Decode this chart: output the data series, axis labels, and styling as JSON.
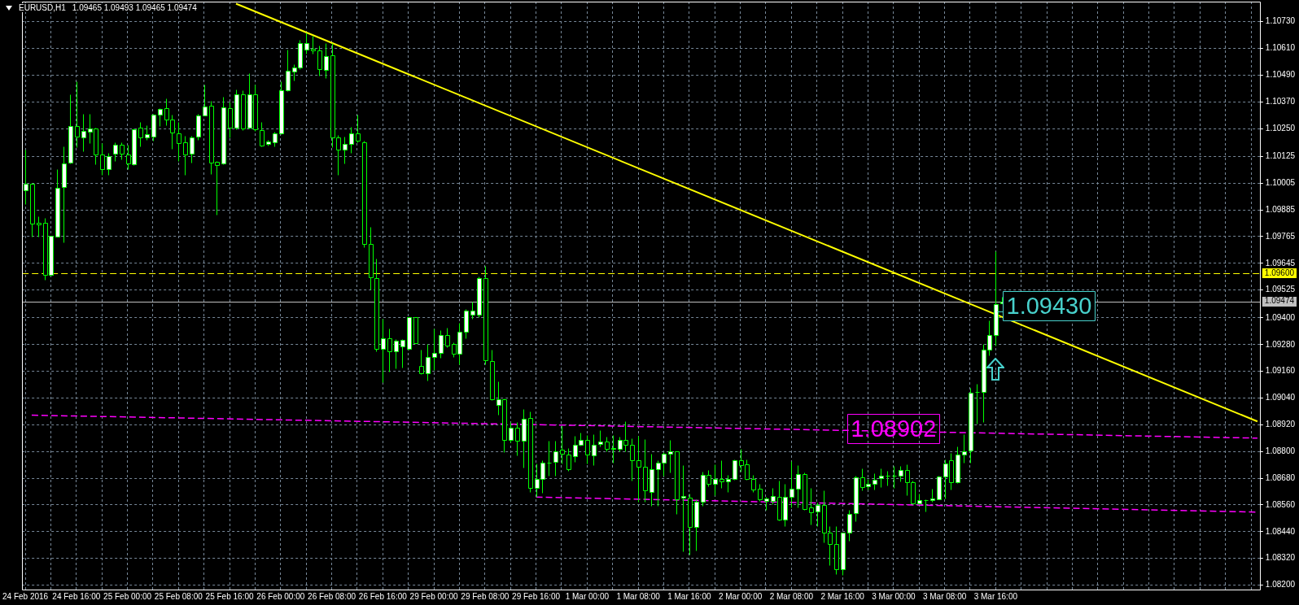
{
  "chart_data": {
    "type": "candlestick",
    "title": "EURUSD,H1",
    "subtitle": "1.09465 1.09493 1.09465 1.09474",
    "categories": [
      "24 Feb 2016",
      null,
      null,
      null,
      null,
      null,
      null,
      null,
      "24 Feb 16:00",
      null,
      null,
      null,
      null,
      null,
      null,
      null,
      "25 Feb 00:00",
      null,
      null,
      null,
      null,
      null,
      null,
      null,
      "25 Feb 08:00",
      null,
      null,
      null,
      null,
      null,
      null,
      null,
      "25 Feb 16:00",
      null,
      null,
      null,
      null,
      null,
      null,
      null,
      "26 Feb 00:00",
      null,
      null,
      null,
      null,
      null,
      null,
      null,
      "26 Feb 08:00",
      null,
      null,
      null,
      null,
      null,
      null,
      null,
      "26 Feb 16:00",
      null,
      null,
      null,
      null,
      null,
      null,
      null,
      "29 Feb 00:00",
      null,
      null,
      null,
      null,
      null,
      null,
      null,
      "29 Feb 08:00",
      null,
      null,
      null,
      null,
      null,
      null,
      null,
      "29 Feb 16:00",
      null,
      null,
      null,
      null,
      null,
      null,
      null,
      "1 Mar 00:00",
      null,
      null,
      null,
      null,
      null,
      null,
      null,
      "1 Mar 08:00",
      null,
      null,
      null,
      null,
      null,
      null,
      null,
      "1 Mar 16:00",
      null,
      null,
      null,
      null,
      null,
      null,
      null,
      "2 Mar 00:00",
      null,
      null,
      null,
      null,
      null,
      null,
      null,
      "2 Mar 08:00",
      null,
      null,
      null,
      null,
      null,
      null,
      null,
      "2 Mar 16:00",
      null,
      null,
      null,
      null,
      null,
      null,
      null,
      "3 Mar 00:00",
      null,
      null,
      null,
      null,
      null,
      null,
      null,
      "3 Mar 08:00",
      null,
      null,
      null,
      null,
      null,
      null,
      null,
      "3 Mar 16:00",
      null,
      null,
      null,
      null,
      null,
      null,
      null,
      null,
      null,
      null,
      null,
      null,
      null,
      null,
      null,
      null,
      null,
      null,
      null,
      null,
      null,
      null,
      null,
      null,
      null,
      null,
      null,
      null,
      null,
      null,
      null,
      null,
      null,
      null,
      null,
      null,
      null,
      null,
      null,
      null,
      null
    ],
    "ohlc": [
      [
        1.09973,
        1.10156,
        1.09911,
        1.10002
      ],
      [
        1.10002,
        1.10005,
        1.09763,
        1.09822
      ],
      [
        1.09826,
        1.09857,
        1.09766,
        1.09818
      ],
      [
        1.09825,
        1.09848,
        1.0957,
        1.09593
      ],
      [
        1.09593,
        1.0977,
        1.0959,
        1.09768
      ],
      [
        1.09766,
        1.10069,
        1.09763,
        1.09985
      ],
      [
        1.09989,
        1.1017,
        1.09738,
        1.10093
      ],
      [
        1.10096,
        1.10404,
        1.10093,
        1.10263
      ],
      [
        1.10263,
        1.10462,
        1.10166,
        1.10213
      ],
      [
        1.10209,
        1.10317,
        1.10149,
        1.1024
      ],
      [
        1.10236,
        1.10315,
        1.10186,
        1.10249
      ],
      [
        1.10249,
        1.10254,
        1.10089,
        1.10132
      ],
      [
        1.10135,
        1.10186,
        1.10044,
        1.10066
      ],
      [
        1.10066,
        1.1014,
        1.10044,
        1.10128
      ],
      [
        1.10136,
        1.10187,
        1.10106,
        1.10179
      ],
      [
        1.10179,
        1.10187,
        1.10111,
        1.10139
      ],
      [
        1.10135,
        1.10178,
        1.10066,
        1.10093
      ],
      [
        1.10089,
        1.10249,
        1.10086,
        1.10246
      ],
      [
        1.10254,
        1.1028,
        1.1017,
        1.10211
      ],
      [
        1.10211,
        1.10266,
        1.10199,
        1.10225
      ],
      [
        1.10213,
        1.10315,
        1.10195,
        1.10312
      ],
      [
        1.10312,
        1.10342,
        1.10262,
        1.10338
      ],
      [
        1.1034,
        1.10384,
        1.10265,
        1.1029
      ],
      [
        1.1029,
        1.10312,
        1.10158,
        1.10231
      ],
      [
        1.1023,
        1.10278,
        1.10106,
        1.10186
      ],
      [
        1.1019,
        1.10219,
        1.10044,
        1.10135
      ],
      [
        1.10139,
        1.10219,
        1.10098,
        1.10211
      ],
      [
        1.10213,
        1.10317,
        1.10199,
        1.1031
      ],
      [
        1.1031,
        1.10446,
        1.1031,
        1.10348
      ],
      [
        1.10352,
        1.10374,
        1.10047,
        1.10097
      ],
      [
        1.10099,
        1.10106,
        1.09865,
        1.10086
      ],
      [
        1.10093,
        1.10394,
        1.10089,
        1.10345
      ],
      [
        1.10342,
        1.1037,
        1.10211,
        1.10253
      ],
      [
        1.10253,
        1.10424,
        1.10248,
        1.10404
      ],
      [
        1.10404,
        1.10421,
        1.10244,
        1.10249
      ],
      [
        1.10253,
        1.10499,
        1.10249,
        1.10404
      ],
      [
        1.10404,
        1.10446,
        1.10241,
        1.10245
      ],
      [
        1.10243,
        1.1028,
        1.1017,
        1.10173
      ],
      [
        1.1018,
        1.10199,
        1.10173,
        1.10192
      ],
      [
        1.1019,
        1.10236,
        1.1017,
        1.10228
      ],
      [
        1.10229,
        1.10462,
        1.10226,
        1.10421
      ],
      [
        1.10421,
        1.10605,
        1.10418,
        1.10508
      ],
      [
        1.10505,
        1.10538,
        1.10467,
        1.10526
      ],
      [
        1.10524,
        1.10647,
        1.10516,
        1.10635
      ],
      [
        1.10605,
        1.1068,
        1.10588,
        1.10635
      ],
      [
        1.10608,
        1.10666,
        1.10588,
        1.106
      ],
      [
        1.106,
        1.10622,
        1.10488,
        1.10516
      ],
      [
        1.10513,
        1.10635,
        1.10476,
        1.10576
      ],
      [
        1.1058,
        1.10635,
        1.10167,
        1.10212
      ],
      [
        1.10209,
        1.1022,
        1.10044,
        1.10155
      ],
      [
        1.10155,
        1.10215,
        1.10095,
        1.1018
      ],
      [
        1.10182,
        1.10257,
        1.1014,
        1.10229
      ],
      [
        1.10229,
        1.10312,
        1.1019,
        1.10194
      ],
      [
        1.1019,
        1.10194,
        1.09716,
        1.09732
      ],
      [
        1.09732,
        1.09807,
        1.09527,
        1.09582
      ],
      [
        1.09577,
        1.09666,
        1.09251,
        1.0926
      ],
      [
        1.0926,
        1.09396,
        1.0911,
        1.09308
      ],
      [
        1.0931,
        1.09352,
        1.09159,
        1.09251
      ],
      [
        1.09251,
        1.09306,
        1.09173,
        1.09298
      ],
      [
        1.09272,
        1.09306,
        1.09177,
        1.09302
      ],
      [
        1.0926,
        1.09405,
        1.09257,
        1.09402
      ],
      [
        1.09402,
        1.09405,
        1.09285,
        1.09288
      ],
      [
        1.09184,
        1.09256,
        1.09146,
        1.09151
      ],
      [
        1.09151,
        1.09282,
        1.09118,
        1.09223
      ],
      [
        1.09223,
        1.09352,
        1.09166,
        1.09243
      ],
      [
        1.09243,
        1.09343,
        1.09222,
        1.09322
      ],
      [
        1.09322,
        1.09355,
        1.09268,
        1.09276
      ],
      [
        1.09282,
        1.0929,
        1.09226,
        1.09238
      ],
      [
        1.09238,
        1.09377,
        1.09193,
        1.09338
      ],
      [
        1.09338,
        1.09441,
        1.0931,
        1.09434
      ],
      [
        1.09415,
        1.09472,
        1.09396,
        1.09434
      ],
      [
        1.09415,
        1.09585,
        1.09405,
        1.09577
      ],
      [
        1.09577,
        1.09633,
        1.09193,
        1.0921
      ],
      [
        1.09206,
        1.09256,
        1.09031,
        1.09034
      ],
      [
        1.09009,
        1.09114,
        1.08964,
        1.09034
      ],
      [
        1.09034,
        1.09037,
        1.08796,
        1.08853
      ],
      [
        1.08853,
        1.08932,
        1.08841,
        1.08905
      ],
      [
        1.08905,
        1.08932,
        1.08783,
        1.0885
      ],
      [
        1.0885,
        1.0899,
        1.08728,
        1.08948
      ],
      [
        1.08952,
        1.08978,
        1.08618,
        1.08635
      ],
      [
        1.08635,
        1.08746,
        1.08597,
        1.08675
      ],
      [
        1.08675,
        1.0876,
        1.08614,
        1.08748
      ],
      [
        1.08748,
        1.08847,
        1.08692,
        1.0875
      ],
      [
        1.08752,
        1.08847,
        1.08692,
        1.08801
      ],
      [
        1.08807,
        1.08917,
        1.08747,
        1.0879
      ],
      [
        1.08787,
        1.08817,
        1.08712,
        1.08721
      ],
      [
        1.08779,
        1.0887,
        1.08753,
        1.08831
      ],
      [
        1.08831,
        1.08885,
        1.08827,
        1.08853
      ],
      [
        1.08853,
        1.08874,
        1.08745,
        1.08787
      ],
      [
        1.08784,
        1.08877,
        1.0874,
        1.08831
      ],
      [
        1.08835,
        1.08895,
        1.08823,
        1.08845
      ],
      [
        1.08846,
        1.08865,
        1.08802,
        1.08812
      ],
      [
        1.08814,
        1.08874,
        1.08749,
        1.08812
      ],
      [
        1.0881,
        1.08868,
        1.08801,
        1.08853
      ],
      [
        1.08853,
        1.08935,
        1.08801,
        1.0883
      ],
      [
        1.08831,
        1.08858,
        1.08669,
        1.08761
      ],
      [
        1.08759,
        1.08871,
        1.08573,
        1.0873
      ],
      [
        1.0873,
        1.08855,
        1.08573,
        1.08625
      ],
      [
        1.0862,
        1.0879,
        1.08557,
        1.08722
      ],
      [
        1.08722,
        1.0876,
        1.08557,
        1.08751
      ],
      [
        1.08751,
        1.08797,
        1.08692,
        1.08788
      ],
      [
        1.08788,
        1.08851,
        1.08706,
        1.08801
      ],
      [
        1.08799,
        1.08801,
        1.08521,
        1.08585
      ],
      [
        1.08591,
        1.0874,
        1.08351,
        1.086
      ],
      [
        1.08594,
        1.08611,
        1.08338,
        1.08462
      ],
      [
        1.08462,
        1.08585,
        1.08356,
        1.08576
      ],
      [
        1.08573,
        1.08711,
        1.08555,
        1.08696
      ],
      [
        1.08696,
        1.08718,
        1.08643,
        1.08655
      ],
      [
        1.08655,
        1.08742,
        1.08603,
        1.08678
      ],
      [
        1.08678,
        1.0876,
        1.08637,
        1.08667
      ],
      [
        1.08667,
        1.08694,
        1.08617,
        1.08675
      ],
      [
        1.08676,
        1.08765,
        1.08672,
        1.08759
      ],
      [
        1.08759,
        1.08812,
        1.08711,
        1.0874
      ],
      [
        1.08741,
        1.08765,
        1.08672,
        1.08678
      ],
      [
        1.08678,
        1.08694,
        1.08617,
        1.0863
      ],
      [
        1.08631,
        1.08654,
        1.08579,
        1.08586
      ],
      [
        1.08579,
        1.08598,
        1.08537,
        1.08589
      ],
      [
        1.08577,
        1.08638,
        1.08562,
        1.08601
      ],
      [
        1.08598,
        1.08668,
        1.08489,
        1.08495
      ],
      [
        1.08495,
        1.08653,
        1.08465,
        1.08598
      ],
      [
        1.08598,
        1.08757,
        1.0855,
        1.08632
      ],
      [
        1.08632,
        1.08738,
        1.0855,
        1.08699
      ],
      [
        1.08699,
        1.08704,
        1.08538,
        1.08541
      ],
      [
        1.0855,
        1.08636,
        1.08471,
        1.08526
      ],
      [
        1.0853,
        1.08569,
        1.08465,
        1.08561
      ],
      [
        1.08561,
        1.08624,
        1.08392,
        1.08435
      ],
      [
        1.08435,
        1.08465,
        1.08289,
        1.08383
      ],
      [
        1.08383,
        1.08465,
        1.08251,
        1.08273
      ],
      [
        1.08273,
        1.08437,
        1.08245,
        1.08435
      ],
      [
        1.08437,
        1.08538,
        1.08398,
        1.0852
      ],
      [
        1.08522,
        1.08692,
        1.08487,
        1.08683
      ],
      [
        1.08683,
        1.08725,
        1.08625,
        1.0864
      ],
      [
        1.08643,
        1.08677,
        1.08628,
        1.08655
      ],
      [
        1.08656,
        1.08701,
        1.08628,
        1.08674
      ],
      [
        1.0868,
        1.08725,
        1.0864,
        1.08692
      ],
      [
        1.08692,
        1.08713,
        1.08646,
        1.08692
      ],
      [
        1.08693,
        1.08735,
        1.08636,
        1.08693
      ],
      [
        1.08693,
        1.08734,
        1.08665,
        1.08717
      ],
      [
        1.08716,
        1.08741,
        1.08604,
        1.08663
      ],
      [
        1.08663,
        1.08668,
        1.08562,
        1.08566
      ],
      [
        1.08568,
        1.0861,
        1.08562,
        1.08583
      ],
      [
        1.08581,
        1.08584,
        1.0853,
        1.08581
      ],
      [
        1.08581,
        1.08633,
        1.08574,
        1.08588
      ],
      [
        1.08587,
        1.0869,
        1.08584,
        1.08688
      ],
      [
        1.08688,
        1.08763,
        1.08589,
        1.08747
      ],
      [
        1.08759,
        1.08793,
        1.08628,
        1.08663
      ],
      [
        1.08663,
        1.08821,
        1.0866,
        1.08787
      ],
      [
        1.08787,
        1.08876,
        1.08751,
        1.08802
      ],
      [
        1.08805,
        1.09086,
        1.08751,
        1.09065
      ],
      [
        1.09068,
        1.09105,
        1.08925,
        1.09068
      ],
      [
        1.09069,
        1.09281,
        1.08933,
        1.09259
      ],
      [
        1.09257,
        1.09388,
        1.09233,
        1.09324
      ],
      [
        1.09324,
        1.097,
        1.09275,
        1.09462
      ],
      [
        1.09465,
        1.09493,
        1.09465,
        1.09474
      ],
      null,
      null,
      null,
      null,
      null,
      null,
      null,
      null,
      null,
      null,
      null,
      null,
      null,
      null,
      null,
      null,
      null,
      null,
      null,
      null,
      null,
      null,
      null,
      null,
      null,
      null,
      null,
      null,
      null,
      null,
      null,
      null,
      null,
      null,
      null,
      null,
      null,
      null,
      null,
      null
    ],
    "colors": [
      "#ffffff",
      "#000000",
      "#000000",
      "#000000",
      "#ffffff",
      "#ffffff",
      "#ffffff",
      "#ffffff",
      "#000000",
      "#ffffff",
      "#ffffff",
      "#000000",
      "#000000",
      "#ffffff",
      "#ffffff",
      "#000000",
      "#000000",
      "#ffffff",
      "#000000",
      "#ffffff",
      "#ffffff",
      "#ffffff",
      "#000000",
      "#000000",
      "#000000",
      "#000000",
      "#ffffff",
      "#ffffff",
      "#ffffff",
      "#000000",
      "#000000",
      "#ffffff",
      "#000000",
      "#ffffff",
      "#000000",
      "#ffffff",
      "#000000",
      "#000000",
      "#ffffff",
      "#ffffff",
      "#ffffff",
      "#ffffff",
      "#ffffff",
      "#ffffff",
      "#ffffff",
      "#000000",
      "#000000",
      "#ffffff",
      "#000000",
      "#000000",
      "#ffffff",
      "#ffffff",
      "#000000",
      "#000000",
      "#000000",
      "#000000",
      "#ffffff",
      "#000000",
      "#ffffff",
      "#ffffff",
      "#ffffff",
      "#000000",
      "#000000",
      "#ffffff",
      "#ffffff",
      "#ffffff",
      "#000000",
      "#000000",
      "#ffffff",
      "#ffffff",
      "#ffffff",
      "#ffffff",
      "#000000",
      "#000000",
      "#ffffff",
      "#000000",
      "#ffffff",
      "#000000",
      "#ffffff",
      "#000000",
      "#ffffff",
      "#ffffff",
      "#00ff00",
      "#ffffff",
      "#000000",
      "#000000",
      "#ffffff",
      "#ffffff",
      "#000000",
      "#ffffff",
      "#ffffff",
      "#000000",
      "#00ff00",
      "#ffffff",
      "#000000",
      "#000000",
      "#000000",
      "#000000",
      "#ffffff",
      "#ffffff",
      "#ffffff",
      "#ffffff",
      "#000000",
      "#ffffff",
      "#000000",
      "#ffffff",
      "#ffffff",
      "#000000",
      "#ffffff",
      "#000000",
      "#ffffff",
      "#ffffff",
      "#000000",
      "#000000",
      "#000000",
      "#000000",
      "#ffffff",
      "#ffffff",
      "#000000",
      "#ffffff",
      "#ffffff",
      "#ffffff",
      "#000000",
      "#000000",
      "#ffffff",
      "#000000",
      "#000000",
      "#000000",
      "#ffffff",
      "#ffffff",
      "#ffffff",
      "#000000",
      "#ffffff",
      "#ffffff",
      "#ffffff",
      "#00ff00",
      "#00ff00",
      "#ffffff",
      "#000000",
      "#000000",
      "#ffffff",
      "#00ff00",
      "#ffffff",
      "#ffffff",
      "#ffffff",
      "#000000",
      "#ffffff",
      "#ffffff",
      "#ffffff",
      "#00ff00",
      "#ffffff",
      "#ffffff",
      "#ffffff",
      "#ffffff",
      null,
      null,
      null,
      null,
      null,
      null,
      null,
      null,
      null,
      null,
      null,
      null,
      null,
      null,
      null,
      null,
      null,
      null,
      null,
      null,
      null,
      null,
      null,
      null,
      null,
      null,
      null,
      null,
      null,
      null,
      null,
      null,
      null,
      null,
      null,
      null,
      null,
      null,
      null,
      null
    ],
    "series": [
      {
        "type": "line",
        "color": "#ffff00",
        "line_style": "solid",
        "values": [
          null,
          null,
          null,
          null,
          null,
          null,
          null,
          null,
          null,
          null,
          null,
          null,
          null,
          null,
          null,
          null,
          null,
          null,
          null,
          null,
          null,
          null,
          null,
          null,
          null,
          null,
          null,
          null,
          null,
          null,
          null,
          null,
          null,
          1.10811,
          null,
          null,
          null,
          null,
          null,
          null,
          null,
          null,
          null,
          null,
          null,
          null,
          null,
          null,
          null,
          null,
          null,
          null,
          null,
          null,
          null,
          null,
          null,
          null,
          null,
          null,
          null,
          null,
          null,
          null,
          null,
          null,
          null,
          null,
          null,
          null,
          null,
          null,
          null,
          null,
          null,
          null,
          null,
          null,
          null,
          null,
          null,
          null,
          null,
          null,
          null,
          null,
          null,
          null,
          null,
          null,
          null,
          null,
          null,
          null,
          null,
          null,
          null,
          null,
          null,
          null,
          null,
          null,
          null,
          null,
          null,
          null,
          null,
          null,
          null,
          null,
          null,
          null,
          null,
          null,
          null,
          null,
          null,
          null,
          null,
          null,
          null,
          null,
          null,
          null,
          null,
          null,
          null,
          null,
          null,
          null,
          null,
          null,
          null,
          null,
          null,
          null,
          null,
          null,
          null,
          null,
          null,
          null,
          null,
          null,
          null,
          null,
          null,
          null,
          null,
          null,
          null,
          null,
          null,
          null,
          null,
          null,
          null,
          null,
          null,
          null,
          null,
          null,
          null,
          null,
          null,
          null,
          null,
          null,
          null,
          null,
          null,
          null,
          null,
          null,
          null,
          null,
          null,
          null,
          null,
          null,
          null,
          null,
          null,
          null,
          null,
          null,
          null,
          null,
          null,
          null,
          null,
          null,
          null,
          1.08935
        ]
      },
      {
        "type": "line",
        "color": "#ff00ff",
        "line_style": "dashed",
        "values": [
          null,
          1.08963,
          null,
          null,
          null,
          null,
          null,
          null,
          null,
          null,
          null,
          null,
          null,
          null,
          null,
          null,
          null,
          null,
          null,
          null,
          null,
          null,
          null,
          null,
          null,
          null,
          null,
          null,
          null,
          null,
          null,
          null,
          null,
          null,
          null,
          null,
          null,
          null,
          null,
          null,
          null,
          null,
          null,
          null,
          null,
          null,
          null,
          null,
          null,
          null,
          null,
          null,
          null,
          null,
          null,
          null,
          null,
          null,
          null,
          null,
          null,
          null,
          null,
          null,
          null,
          null,
          null,
          null,
          null,
          null,
          null,
          null,
          null,
          null,
          null,
          null,
          null,
          null,
          null,
          null,
          null,
          null,
          null,
          null,
          null,
          null,
          null,
          null,
          null,
          null,
          null,
          null,
          null,
          null,
          null,
          null,
          null,
          null,
          null,
          null,
          null,
          null,
          null,
          null,
          null,
          null,
          null,
          null,
          null,
          null,
          null,
          null,
          null,
          null,
          null,
          null,
          null,
          null,
          null,
          null,
          null,
          null,
          null,
          null,
          null,
          null,
          null,
          null,
          null,
          null,
          null,
          null,
          null,
          null,
          null,
          null,
          null,
          null,
          null,
          null,
          null,
          null,
          null,
          null,
          null,
          null,
          null,
          null,
          null,
          null,
          null,
          null,
          null,
          null,
          null,
          null,
          null,
          null,
          null,
          null,
          null,
          null,
          null,
          null,
          null,
          null,
          null,
          null,
          null,
          null,
          null,
          null,
          null,
          null,
          null,
          null,
          null,
          null,
          null,
          null,
          null,
          null,
          null,
          null,
          null,
          null,
          null,
          null,
          null,
          null,
          null,
          null,
          null,
          1.0886
        ]
      },
      {
        "type": "line",
        "color": "#ff00ff",
        "line_style": "dashed",
        "values": [
          null,
          null,
          null,
          null,
          null,
          null,
          null,
          null,
          null,
          null,
          null,
          null,
          null,
          null,
          null,
          null,
          null,
          null,
          null,
          null,
          null,
          null,
          null,
          null,
          null,
          null,
          null,
          null,
          null,
          null,
          null,
          null,
          null,
          null,
          null,
          null,
          null,
          null,
          null,
          null,
          null,
          null,
          null,
          null,
          null,
          null,
          null,
          null,
          null,
          null,
          null,
          null,
          null,
          null,
          null,
          null,
          null,
          null,
          null,
          null,
          null,
          null,
          null,
          null,
          null,
          null,
          null,
          null,
          null,
          null,
          null,
          null,
          null,
          null,
          null,
          null,
          null,
          null,
          null,
          null,
          1.08595,
          null,
          null,
          null,
          null,
          null,
          null,
          null,
          null,
          null,
          null,
          null,
          null,
          null,
          null,
          null,
          null,
          null,
          null,
          null,
          null,
          null,
          null,
          null,
          null,
          null,
          null,
          null,
          null,
          null,
          null,
          null,
          null,
          null,
          null,
          null,
          null,
          null,
          null,
          null,
          null,
          null,
          null,
          null,
          null,
          null,
          null,
          null,
          null,
          null,
          null,
          null,
          null,
          null,
          null,
          null,
          null,
          null,
          null,
          null,
          null,
          null,
          null,
          null,
          null,
          null,
          null,
          null,
          null,
          null,
          null,
          null,
          null,
          null,
          null,
          null,
          null,
          null,
          null,
          null,
          null,
          null,
          null,
          null,
          null,
          null,
          null,
          null,
          null,
          null,
          null,
          null,
          null,
          null,
          null,
          null,
          null,
          null,
          null,
          null,
          null,
          null,
          null,
          null,
          null,
          null,
          null,
          null,
          null,
          null,
          null,
          null,
          null,
          1.08528
        ]
      }
    ],
    "ylim": [
      1.0818,
      1.1082
    ],
    "yticks": [
      {
        "value": 1.082,
        "label": "1.08200"
      },
      {
        "value": 1.0832,
        "label": "1.08320"
      },
      {
        "value": 1.0844,
        "label": "1.08440"
      },
      {
        "value": 1.0856,
        "label": "1.08560"
      },
      {
        "value": 1.0868,
        "label": "1.08680"
      },
      {
        "value": 1.088,
        "label": "1.08800"
      },
      {
        "value": 1.0892,
        "label": "1.08920"
      },
      {
        "value": 1.0904,
        "label": "1.09040"
      },
      {
        "value": 1.0916,
        "label": "1.09160"
      },
      {
        "value": 1.0928,
        "label": "1.09280"
      },
      {
        "value": 1.094,
        "label": "1.09400"
      },
      1.09525,
      1.09645,
      1.09765,
      1.09885,
      1.10005,
      1.10125,
      {
        "value": 1.1025,
        "label": "1.10250"
      },
      {
        "value": 1.1037,
        "label": "1.10370"
      },
      {
        "value": 1.1049,
        "label": "1.10490"
      },
      {
        "value": 1.1061,
        "label": "1.10610"
      },
      {
        "value": 1.1073,
        "label": "1.10730"
      }
    ],
    "grid": true,
    "ref_lines": [
      {
        "axis": "y",
        "value": 1.096,
        "label": "1.09600",
        "color": "#ffff00",
        "line_style": "dashed"
      },
      {
        "axis": "y",
        "value": 1.09474,
        "label": "1.09474",
        "color": "#c0c0c0",
        "line_style": "solid"
      }
    ],
    "annotations": [
      {
        "text": "1.09430",
        "x": "3 Mar 16:00",
        "y": 1.0943
      },
      "1.08902"
    ]
  }
}
